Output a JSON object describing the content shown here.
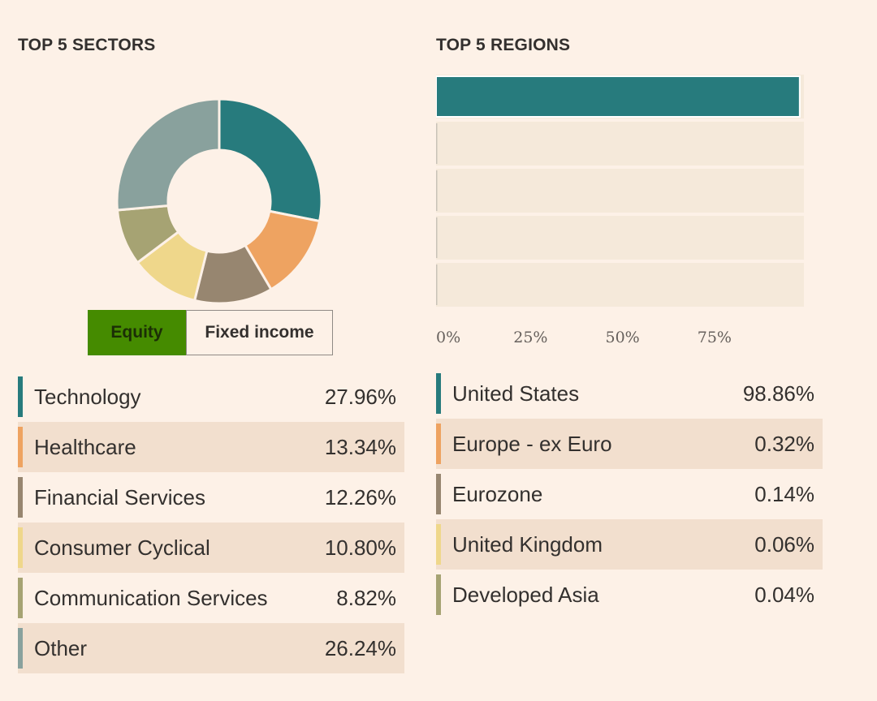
{
  "sectors": {
    "heading": "TOP 5 SECTORS",
    "toggle": {
      "equity_label": "Equity",
      "fixed_income_label": "Fixed income",
      "selected": "Equity"
    },
    "items": [
      {
        "label": "Technology",
        "value": "27.96%",
        "color": "#277b7d"
      },
      {
        "label": "Healthcare",
        "value": "13.34%",
        "color": "#eea361"
      },
      {
        "label": "Financial Services",
        "value": "12.26%",
        "color": "#978670"
      },
      {
        "label": "Consumer Cyclical",
        "value": "10.80%",
        "color": "#efd78b"
      },
      {
        "label": "Communication Services",
        "value": "8.82%",
        "color": "#a6a373"
      },
      {
        "label": "Other",
        "value": "26.24%",
        "color": "#89a19d"
      }
    ]
  },
  "regions": {
    "heading": "TOP 5 REGIONS",
    "items": [
      {
        "label": "United States",
        "value": "98.86%",
        "color": "#277b7d"
      },
      {
        "label": "Europe - ex Euro",
        "value": "0.32%",
        "color": "#eea361"
      },
      {
        "label": "Eurozone",
        "value": "0.14%",
        "color": "#978670"
      },
      {
        "label": "United Kingdom",
        "value": "0.06%",
        "color": "#efd78b"
      },
      {
        "label": "Developed Asia",
        "value": "0.04%",
        "color": "#a6a373"
      }
    ]
  },
  "chart_data": [
    {
      "type": "pie",
      "variant": "donut",
      "categories": [
        "Technology",
        "Healthcare",
        "Financial Services",
        "Consumer Cyclical",
        "Communication Services",
        "Other"
      ],
      "values": [
        27.96,
        13.34,
        12.26,
        10.8,
        8.82,
        26.24
      ],
      "colors": [
        "#277b7d",
        "#eea361",
        "#978670",
        "#efd78b",
        "#a6a373",
        "#89a19d"
      ],
      "title": "TOP 5 SECTORS"
    },
    {
      "type": "bar",
      "orientation": "horizontal",
      "categories": [
        "United States",
        "Europe - ex Euro",
        "Eurozone",
        "United Kingdom",
        "Developed Asia"
      ],
      "values": [
        98.86,
        0.32,
        0.14,
        0.06,
        0.04
      ],
      "colors": [
        "#277b7d",
        "#eea361",
        "#978670",
        "#efd78b",
        "#a6a373"
      ],
      "title": "TOP 5 REGIONS",
      "xlim": [
        0,
        100
      ],
      "xticks": [
        0,
        25,
        50,
        75
      ],
      "xtick_labels": [
        "0%",
        "25%",
        "50%",
        "75%"
      ],
      "grid": true
    }
  ]
}
